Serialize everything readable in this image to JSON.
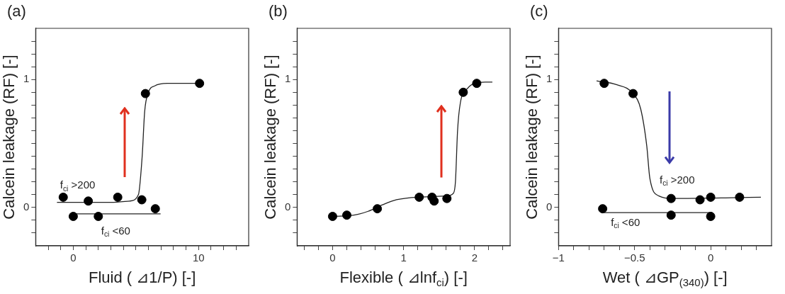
{
  "chart_data": [
    {
      "type": "scatter",
      "title": "(a)",
      "xlabel": "Fluid ( ⊿1/P) [-]",
      "ylabel": "Calcein leakage (RF) [-]",
      "xlim": [
        -3,
        14
      ],
      "ylim": [
        -0.3,
        1.4
      ],
      "xticks": [
        {
          "value": -2,
          "label": null
        },
        {
          "value": -1,
          "label": null
        },
        0,
        {
          "value": 1,
          "label": null
        },
        {
          "value": 2,
          "label": null
        },
        {
          "value": 3,
          "label": null
        },
        {
          "value": 4,
          "label": null
        },
        {
          "value": 5,
          "label": null
        },
        {
          "value": 6,
          "label": null
        },
        {
          "value": 7,
          "label": null
        },
        {
          "value": 8,
          "label": null
        },
        {
          "value": 9,
          "label": null
        },
        10,
        {
          "value": 11,
          "label": null
        },
        {
          "value": 12,
          "label": null
        },
        {
          "value": 13,
          "label": null
        }
      ],
      "yticks": [
        {
          "value": -0.2,
          "label": null
        },
        {
          "value": -0.1,
          "label": null
        },
        {
          "value": 0,
          "label": "0"
        },
        {
          "value": 0.1,
          "label": null
        },
        {
          "value": 0.2,
          "label": null
        },
        {
          "value": 0.3,
          "label": null
        },
        {
          "value": 0.4,
          "label": null
        },
        {
          "value": 0.5,
          "label": null
        },
        {
          "value": 0.6,
          "label": null
        },
        {
          "value": 0.7,
          "label": null
        },
        {
          "value": 0.8,
          "label": null
        },
        {
          "value": 0.9,
          "label": null
        },
        {
          "value": 1,
          "label": "1"
        },
        {
          "value": 1.1,
          "label": null
        },
        {
          "value": 1.2,
          "label": null
        },
        {
          "value": 1.3,
          "label": null
        }
      ],
      "series": [
        {
          "type": "line",
          "color": "#222222",
          "marker": "none",
          "x": [
            -1.3,
            3,
            4.5,
            5.2,
            5.5,
            5.7,
            6,
            6.5,
            7.5,
            10
          ],
          "values": [
            0.04,
            0.04,
            0.05,
            0.1,
            0.4,
            0.75,
            0.9,
            0.95,
            0.97,
            0.97
          ]
        },
        {
          "type": "line",
          "color": "#222222",
          "marker": "none",
          "x": [
            0.1,
            6.97
          ],
          "values": [
            -0.05,
            -0.05
          ]
        },
        {
          "type": "scatter",
          "color": "#000000",
          "marker": "circle",
          "x": [
            -0.8,
            0,
            1.2,
            2,
            3.55,
            5.47,
            5.76,
            6.55,
            10.08
          ],
          "values": [
            0.08,
            -0.07,
            0.05,
            -0.07,
            0.08,
            0.06,
            0.89,
            -0.01,
            0.97
          ]
        }
      ],
      "annotations": [
        "f$_{ci}$ >200",
        "f$_{ci}$ <60"
      ]
    },
    {
      "type": "scatter",
      "title": "(b)",
      "xlabel": "Flexible ( ⊿lnf$_{ci}$) [-]",
      "ylabel": "Calcein leakage (RF) [-]",
      "xlim": [
        -0.5,
        2.5
      ],
      "ylim": [
        -0.3,
        1.4
      ],
      "xticks": [
        {
          "value": -0.4,
          "label": null
        },
        {
          "value": -0.2,
          "label": null
        },
        0,
        {
          "value": 0.2,
          "label": null
        },
        {
          "value": 0.4,
          "label": null
        },
        {
          "value": 0.6,
          "label": null
        },
        {
          "value": 0.8,
          "label": null
        },
        1,
        {
          "value": 1.2,
          "label": null
        },
        {
          "value": 1.4,
          "label": null
        },
        {
          "value": 1.6,
          "label": null
        },
        {
          "value": 1.8,
          "label": null
        },
        2,
        {
          "value": 2.2,
          "label": null
        },
        {
          "value": 2.4,
          "label": null
        }
      ],
      "yticks": [
        {
          "value": -0.2,
          "label": null
        },
        {
          "value": -0.1,
          "label": null
        },
        {
          "value": 0,
          "label": "0"
        },
        {
          "value": 0.1,
          "label": null
        },
        {
          "value": 0.2,
          "label": null
        },
        {
          "value": 0.3,
          "label": null
        },
        {
          "value": 0.4,
          "label": null
        },
        {
          "value": 0.5,
          "label": null
        },
        {
          "value": 0.6,
          "label": null
        },
        {
          "value": 0.7,
          "label": null
        },
        {
          "value": 0.8,
          "label": null
        },
        {
          "value": 0.9,
          "label": null
        },
        {
          "value": 1,
          "label": "1"
        },
        {
          "value": 1.1,
          "label": null
        },
        {
          "value": 1.2,
          "label": null
        },
        {
          "value": 1.3,
          "label": null
        }
      ],
      "series": [
        {
          "type": "line",
          "color": "#222222",
          "marker": "none",
          "x": [
            0,
            0.3,
            0.5,
            0.7,
            0.9,
            1.2,
            1.6,
            1.7,
            1.73,
            1.76,
            1.8,
            1.9,
            2,
            2.15,
            2.25
          ],
          "values": [
            -0.07,
            -0.06,
            -0.03,
            0.02,
            0.06,
            0.08,
            0.09,
            0.11,
            0.2,
            0.6,
            0.82,
            0.93,
            0.97,
            0.98,
            0.98
          ]
        },
        {
          "type": "scatter",
          "color": "#000000",
          "marker": "circle",
          "x": [
            0,
            0.2,
            0.63,
            1.22,
            1.4,
            1.43,
            1.61,
            1.84,
            2.03
          ],
          "values": [
            -0.07,
            -0.06,
            -0.01,
            0.08,
            0.08,
            0.05,
            0.07,
            0.9,
            0.97
          ]
        }
      ]
    },
    {
      "type": "scatter",
      "title": "(c)",
      "xlabel": "Wet ( ⊿GP$_{(340)}$) [-]",
      "ylabel": "Calcein leakage (RF) [-]",
      "xlim": [
        -1,
        0.4
      ],
      "ylim": [
        -0.3,
        1.4
      ],
      "xticks": [
        {
          "value": -1,
          "label": "−1"
        },
        {
          "value": -0.9,
          "label": null
        },
        {
          "value": -0.8,
          "label": null
        },
        {
          "value": -0.7,
          "label": null
        },
        {
          "value": -0.6,
          "label": null
        },
        {
          "value": -0.5,
          "label": "−0.5"
        },
        {
          "value": -0.4,
          "label": null
        },
        {
          "value": -0.3,
          "label": null
        },
        {
          "value": -0.2,
          "label": null
        },
        {
          "value": -0.1,
          "label": null
        },
        0,
        {
          "value": 0.1,
          "label": null
        },
        {
          "value": 0.2,
          "label": null
        },
        {
          "value": 0.3,
          "label": null
        }
      ],
      "yticks": [
        {
          "value": -0.2,
          "label": null
        },
        {
          "value": -0.1,
          "label": null
        },
        {
          "value": 0,
          "label": "0"
        },
        {
          "value": 0.1,
          "label": null
        },
        {
          "value": 0.2,
          "label": null
        },
        {
          "value": 0.3,
          "label": null
        },
        {
          "value": 0.4,
          "label": null
        },
        {
          "value": 0.5,
          "label": null
        },
        {
          "value": 0.6,
          "label": null
        },
        {
          "value": 0.7,
          "label": null
        },
        {
          "value": 0.8,
          "label": null
        },
        {
          "value": 0.9,
          "label": null
        },
        {
          "value": 1,
          "label": "1"
        },
        {
          "value": 1.1,
          "label": null
        },
        {
          "value": 1.2,
          "label": null
        },
        {
          "value": 1.3,
          "label": null
        }
      ],
      "series": [
        {
          "type": "line",
          "color": "#222222",
          "marker": "none",
          "x": [
            -0.75,
            -0.62,
            -0.51,
            -0.46,
            -0.42,
            -0.4,
            -0.34,
            -0.25,
            0.33
          ],
          "values": [
            0.99,
            0.96,
            0.89,
            0.77,
            0.48,
            0.23,
            0.09,
            0.07,
            0.08
          ]
        },
        {
          "type": "line",
          "color": "#222222",
          "marker": "none",
          "x": [
            -0.7,
            0.01
          ],
          "values": [
            -0.04,
            -0.04
          ]
        },
        {
          "type": "scatter",
          "color": "#000000",
          "marker": "circle",
          "x": [
            -0.7,
            -0.51,
            -0.71,
            -0.26,
            -0.07,
            0,
            0.19,
            -0.26,
            0
          ],
          "values": [
            0.97,
            0.89,
            -0.01,
            0.07,
            0.06,
            0.08,
            0.08,
            -0.06,
            -0.07
          ]
        }
      ],
      "annotations": [
        "f$_{ci}$ >200",
        "f$_{ci}$ <60"
      ]
    }
  ]
}
